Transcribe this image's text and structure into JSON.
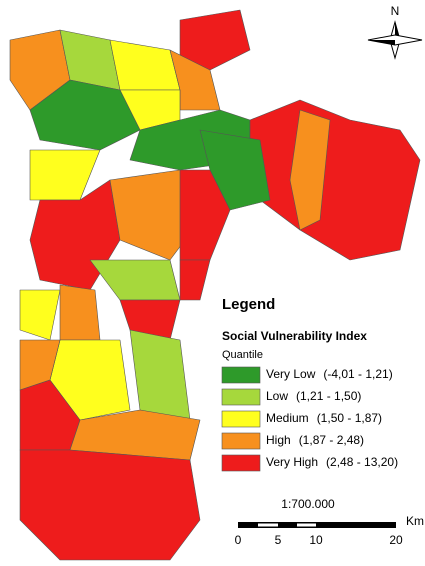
{
  "north": "N",
  "legend": {
    "title": "Legend",
    "subtitle": "Social Vulnerability Index",
    "method": "Quantile",
    "classes": [
      {
        "label": "Very Low",
        "range": "(-4,01 - 1,21)",
        "color": "#2e9a2a"
      },
      {
        "label": "Low",
        "range": "(1,21 - 1,50)",
        "color": "#a6d83c"
      },
      {
        "label": "Medium",
        "range": "(1,50 - 1,87)",
        "color": "#ffff1e"
      },
      {
        "label": "High",
        "range": "(1,87 - 2,48)",
        "color": "#f7901e"
      },
      {
        "label": "Very High",
        "range": "(2,48 - 13,20)",
        "color": "#ee1c1c"
      }
    ]
  },
  "scale": {
    "ratio": "1:700.000",
    "ticks": [
      "0",
      "5",
      "10",
      "20"
    ],
    "unit": "Km"
  }
}
